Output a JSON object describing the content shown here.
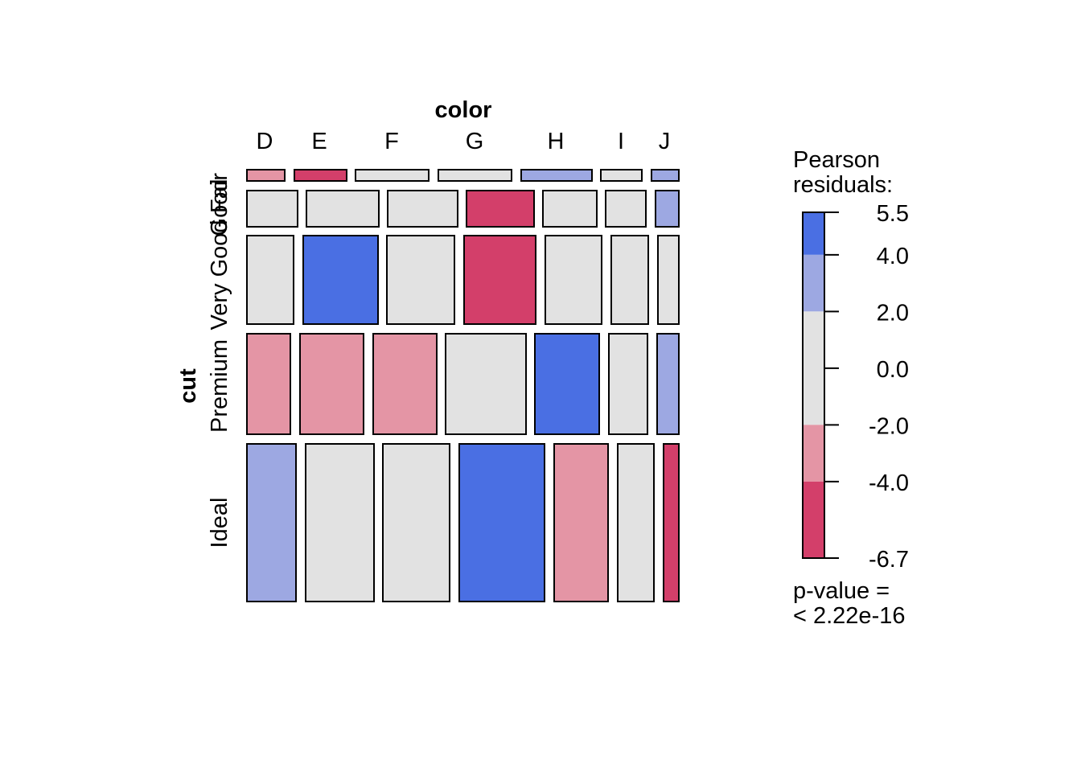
{
  "chart_data": {
    "type": "mosaic",
    "title": "color",
    "xlabel": "color",
    "ylabel": "cut",
    "x_categories": [
      "D",
      "E",
      "F",
      "G",
      "H",
      "I",
      "J"
    ],
    "y_categories": [
      "Fair",
      "Good",
      "Very Good",
      "Premium",
      "Ideal"
    ],
    "cells": [
      {
        "cut": "Fair",
        "color": "D",
        "shade": "neg_mid"
      },
      {
        "cut": "Fair",
        "color": "E",
        "shade": "neg_strong"
      },
      {
        "cut": "Fair",
        "color": "F",
        "shade": "neutral"
      },
      {
        "cut": "Fair",
        "color": "G",
        "shade": "neutral"
      },
      {
        "cut": "Fair",
        "color": "H",
        "shade": "pos_mid"
      },
      {
        "cut": "Fair",
        "color": "I",
        "shade": "neutral"
      },
      {
        "cut": "Fair",
        "color": "J",
        "shade": "pos_mid"
      },
      {
        "cut": "Good",
        "color": "D",
        "shade": "neutral"
      },
      {
        "cut": "Good",
        "color": "E",
        "shade": "neutral"
      },
      {
        "cut": "Good",
        "color": "F",
        "shade": "neutral"
      },
      {
        "cut": "Good",
        "color": "G",
        "shade": "neg_strong"
      },
      {
        "cut": "Good",
        "color": "H",
        "shade": "neutral"
      },
      {
        "cut": "Good",
        "color": "I",
        "shade": "neutral"
      },
      {
        "cut": "Good",
        "color": "J",
        "shade": "pos_mid"
      },
      {
        "cut": "Very Good",
        "color": "D",
        "shade": "neutral"
      },
      {
        "cut": "Very Good",
        "color": "E",
        "shade": "pos_strong"
      },
      {
        "cut": "Very Good",
        "color": "F",
        "shade": "neutral"
      },
      {
        "cut": "Very Good",
        "color": "G",
        "shade": "neg_strong"
      },
      {
        "cut": "Very Good",
        "color": "H",
        "shade": "neutral"
      },
      {
        "cut": "Very Good",
        "color": "I",
        "shade": "neutral"
      },
      {
        "cut": "Very Good",
        "color": "J",
        "shade": "neutral"
      },
      {
        "cut": "Premium",
        "color": "D",
        "shade": "neg_mid"
      },
      {
        "cut": "Premium",
        "color": "E",
        "shade": "neg_mid"
      },
      {
        "cut": "Premium",
        "color": "F",
        "shade": "neg_mid"
      },
      {
        "cut": "Premium",
        "color": "G",
        "shade": "neutral"
      },
      {
        "cut": "Premium",
        "color": "H",
        "shade": "pos_strong"
      },
      {
        "cut": "Premium",
        "color": "I",
        "shade": "neutral"
      },
      {
        "cut": "Premium",
        "color": "J",
        "shade": "pos_mid"
      },
      {
        "cut": "Ideal",
        "color": "D",
        "shade": "pos_mid"
      },
      {
        "cut": "Ideal",
        "color": "E",
        "shade": "neutral"
      },
      {
        "cut": "Ideal",
        "color": "F",
        "shade": "neutral"
      },
      {
        "cut": "Ideal",
        "color": "G",
        "shade": "pos_strong"
      },
      {
        "cut": "Ideal",
        "color": "H",
        "shade": "neg_mid"
      },
      {
        "cut": "Ideal",
        "color": "I",
        "shade": "neutral"
      },
      {
        "cut": "Ideal",
        "color": "J",
        "shade": "neg_strong"
      }
    ],
    "shade_colors": {
      "pos_strong": "#4a6fe3",
      "pos_mid": "#9da8e2",
      "neutral": "#e2e2e2",
      "neg_mid": "#e495a5",
      "neg_strong": "#d33f6a"
    },
    "legend": {
      "title_line1": "Pearson",
      "title_line2": "residuals:",
      "range": [
        -6.7,
        5.5
      ],
      "ticks": [
        "5.5",
        "4.0",
        "2.0",
        "0.0",
        "-2.0",
        "-4.0",
        "-6.7"
      ],
      "bands": [
        {
          "from": 4.0,
          "to": 5.5,
          "shade": "pos_strong"
        },
        {
          "from": 2.0,
          "to": 4.0,
          "shade": "pos_mid"
        },
        {
          "from": -2.0,
          "to": 2.0,
          "shade": "neutral"
        },
        {
          "from": -4.0,
          "to": -2.0,
          "shade": "neg_mid"
        },
        {
          "from": -6.7,
          "to": -4.0,
          "shade": "neg_strong"
        }
      ],
      "pvalue_line1": "p-value =",
      "pvalue_line2": "< 2.22e-16"
    }
  }
}
